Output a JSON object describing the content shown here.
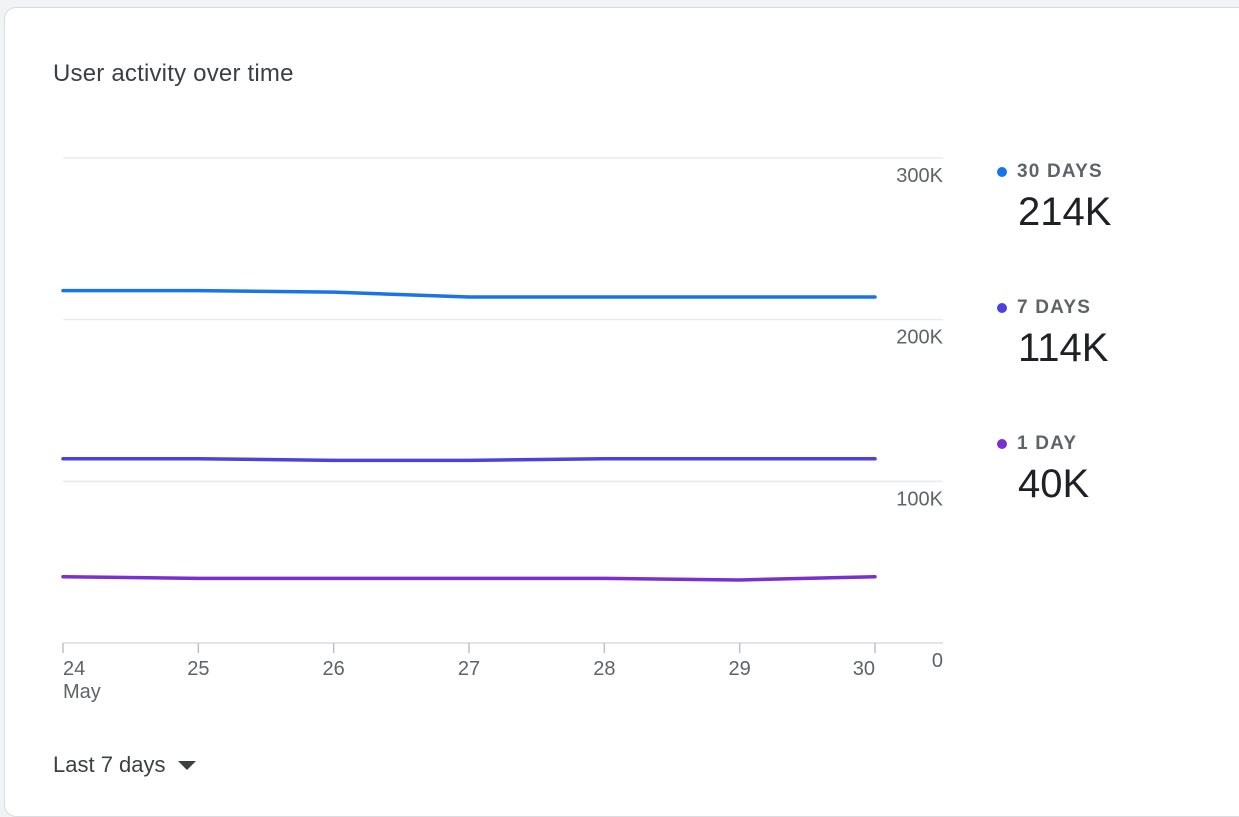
{
  "card": {
    "title": "User activity over time"
  },
  "chart_data": {
    "type": "line",
    "x": [
      "24",
      "25",
      "26",
      "27",
      "28",
      "29",
      "30"
    ],
    "x_sublabel": "May",
    "yticks": [
      "0",
      "100K",
      "200K",
      "300K"
    ],
    "ylim": [
      0,
      300000
    ],
    "grid": true,
    "legend_position": "right",
    "series": [
      {
        "name": "30 DAYS",
        "summary": "214K",
        "color": "#1a73e8",
        "values": [
          218000,
          218000,
          217000,
          214000,
          214000,
          214000,
          214000
        ]
      },
      {
        "name": "7 DAYS",
        "summary": "114K",
        "color": "#4a41e0",
        "values": [
          114000,
          114000,
          113000,
          113000,
          114000,
          114000,
          114000
        ]
      },
      {
        "name": "1 DAY",
        "summary": "40K",
        "color": "#7b2fd0",
        "values": [
          41000,
          40000,
          40000,
          40000,
          40000,
          39000,
          41000
        ]
      }
    ]
  },
  "range_selector": {
    "label": "Last 7 days",
    "icon": "arrow-drop-down-icon"
  }
}
